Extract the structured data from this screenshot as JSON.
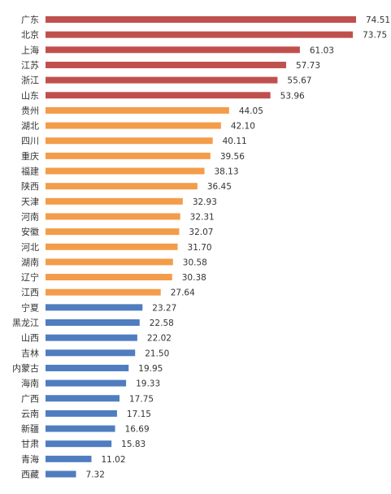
{
  "chart_data": {
    "type": "bar",
    "orientation": "horizontal",
    "title": "",
    "xlabel": "",
    "ylabel": "",
    "xlim": [
      0,
      80
    ],
    "grid": false,
    "legend": "none",
    "categories": [
      "广东",
      "北京",
      "上海",
      "江苏",
      "浙江",
      "山东",
      "贵州",
      "湖北",
      "四川",
      "重庆",
      "福建",
      "陕西",
      "天津",
      "河南",
      "安徽",
      "河北",
      "湖南",
      "辽宁",
      "江西",
      "宁夏",
      "黑龙江",
      "山西",
      "吉林",
      "内蒙古",
      "海南",
      "广西",
      "云南",
      "新疆",
      "甘肃",
      "青海",
      "西藏"
    ],
    "values": [
      74.51,
      73.75,
      61.03,
      57.73,
      55.67,
      53.96,
      44.05,
      42.1,
      40.11,
      39.56,
      38.13,
      36.45,
      32.93,
      32.31,
      32.07,
      31.7,
      30.58,
      30.38,
      27.64,
      23.27,
      22.58,
      22.02,
      21.5,
      19.95,
      19.33,
      17.75,
      17.15,
      16.69,
      15.83,
      11.02,
      7.32
    ],
    "value_labels": [
      "74.51",
      "73.75",
      "61.03",
      "57.73",
      "55.67",
      "53.96",
      "44.05",
      "42.10",
      "40.11",
      "39.56",
      "38.13",
      "36.45",
      "32.93",
      "32.31",
      "32.07",
      "31.70",
      "30.58",
      "30.38",
      "27.64",
      "23.27",
      "22.58",
      "22.02",
      "21.50",
      "19.95",
      "19.33",
      "17.75",
      "17.15",
      "16.69",
      "15.83",
      "11.02",
      "7.32"
    ],
    "groups": [
      {
        "color": "#c0504d",
        "count": 6
      },
      {
        "color": "#f39c4a",
        "count": 13
      },
      {
        "color": "#4f7dbf",
        "count": 12
      }
    ]
  }
}
